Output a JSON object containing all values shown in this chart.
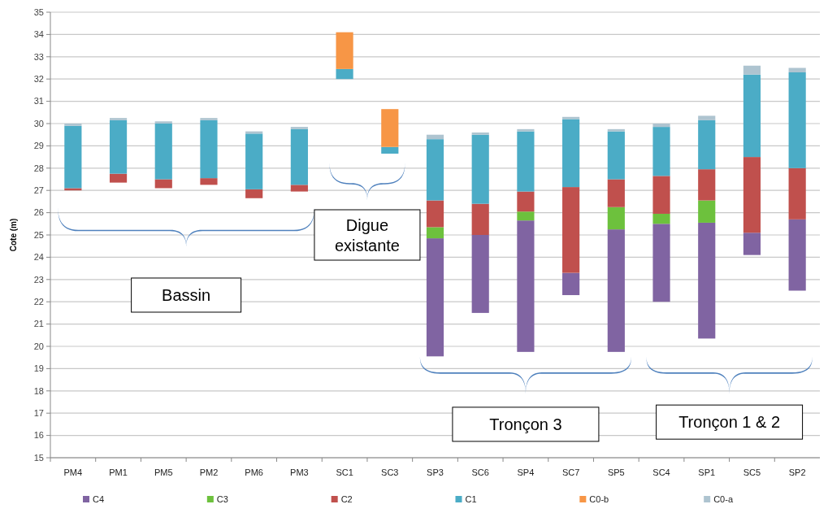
{
  "chart_data": {
    "type": "bar",
    "ylabel": "Cote (m)",
    "categories": [
      "PM4",
      "PM1",
      "PM5",
      "PM2",
      "PM6",
      "PM3",
      "SC1",
      "SC3",
      "SP3",
      "SC6",
      "SP4",
      "SC7",
      "SP5",
      "SC4",
      "SP1",
      "SC5",
      "SP2"
    ],
    "series": [
      {
        "name": "C4",
        "color": "#8064a2",
        "base": [
          null,
          null,
          null,
          null,
          null,
          null,
          null,
          null,
          19.55,
          21.5,
          19.75,
          22.3,
          19.75,
          22.0,
          20.35,
          24.1,
          22.5
        ],
        "values": [
          null,
          null,
          null,
          null,
          null,
          null,
          null,
          null,
          5.3,
          3.5,
          5.9,
          1.0,
          5.5,
          3.5,
          5.2,
          1.0,
          3.2
        ]
      },
      {
        "name": "C3",
        "color": "#6dc13d",
        "base": [
          null,
          null,
          null,
          null,
          null,
          null,
          null,
          null,
          24.85,
          null,
          25.65,
          null,
          25.25,
          25.5,
          25.55,
          null,
          null
        ],
        "values": [
          null,
          null,
          null,
          null,
          null,
          null,
          null,
          null,
          0.5,
          null,
          0.4,
          null,
          1.0,
          0.45,
          1.0,
          null,
          null
        ]
      },
      {
        "name": "C2",
        "color": "#c0504d",
        "base": [
          27.0,
          27.35,
          27.1,
          27.25,
          26.65,
          26.95,
          null,
          null,
          25.35,
          25.0,
          26.05,
          23.3,
          26.25,
          25.95,
          26.55,
          25.1,
          25.7
        ],
        "values": [
          0.1,
          0.4,
          0.4,
          0.3,
          0.4,
          0.3,
          null,
          null,
          1.2,
          1.4,
          0.9,
          3.85,
          1.25,
          1.7,
          1.4,
          3.4,
          2.3
        ]
      },
      {
        "name": "C1",
        "color": "#4bacc6",
        "base": [
          27.1,
          27.75,
          27.5,
          27.55,
          27.05,
          27.25,
          32.0,
          28.65,
          26.55,
          26.4,
          26.95,
          27.15,
          27.5,
          27.65,
          27.95,
          28.5,
          28.0
        ],
        "values": [
          2.8,
          2.4,
          2.5,
          2.6,
          2.5,
          2.5,
          0.45,
          0.3,
          2.75,
          3.1,
          2.7,
          3.05,
          2.15,
          2.2,
          2.2,
          3.7,
          4.3
        ]
      },
      {
        "name": "C0-b",
        "color": "#f79646",
        "base": [
          null,
          null,
          null,
          null,
          null,
          null,
          32.45,
          28.95,
          null,
          null,
          null,
          null,
          null,
          null,
          null,
          null,
          null
        ],
        "values": [
          null,
          null,
          null,
          null,
          null,
          null,
          1.65,
          1.7,
          null,
          null,
          null,
          null,
          null,
          null,
          null,
          null,
          null
        ]
      },
      {
        "name": "C0-a",
        "color": "#aec4d0",
        "base": [
          29.9,
          30.15,
          30.0,
          30.15,
          29.55,
          29.75,
          null,
          null,
          29.3,
          29.5,
          29.65,
          30.2,
          29.65,
          29.85,
          30.15,
          32.2,
          32.3
        ],
        "values": [
          0.1,
          0.1,
          0.1,
          0.1,
          0.1,
          0.1,
          null,
          null,
          0.2,
          0.1,
          0.1,
          0.1,
          0.1,
          0.15,
          0.2,
          0.4,
          0.2
        ]
      }
    ],
    "ylim": [
      15,
      35
    ],
    "yticks": [
      15,
      16,
      17,
      18,
      19,
      20,
      21,
      22,
      23,
      24,
      25,
      26,
      27,
      28,
      29,
      30,
      31,
      32,
      33,
      34,
      35
    ],
    "grid": "y",
    "legend": "bottom",
    "annotations": [
      "Bassin",
      "Digue existante",
      "Tronçon 3",
      "Tronçon 1 & 2"
    ]
  }
}
